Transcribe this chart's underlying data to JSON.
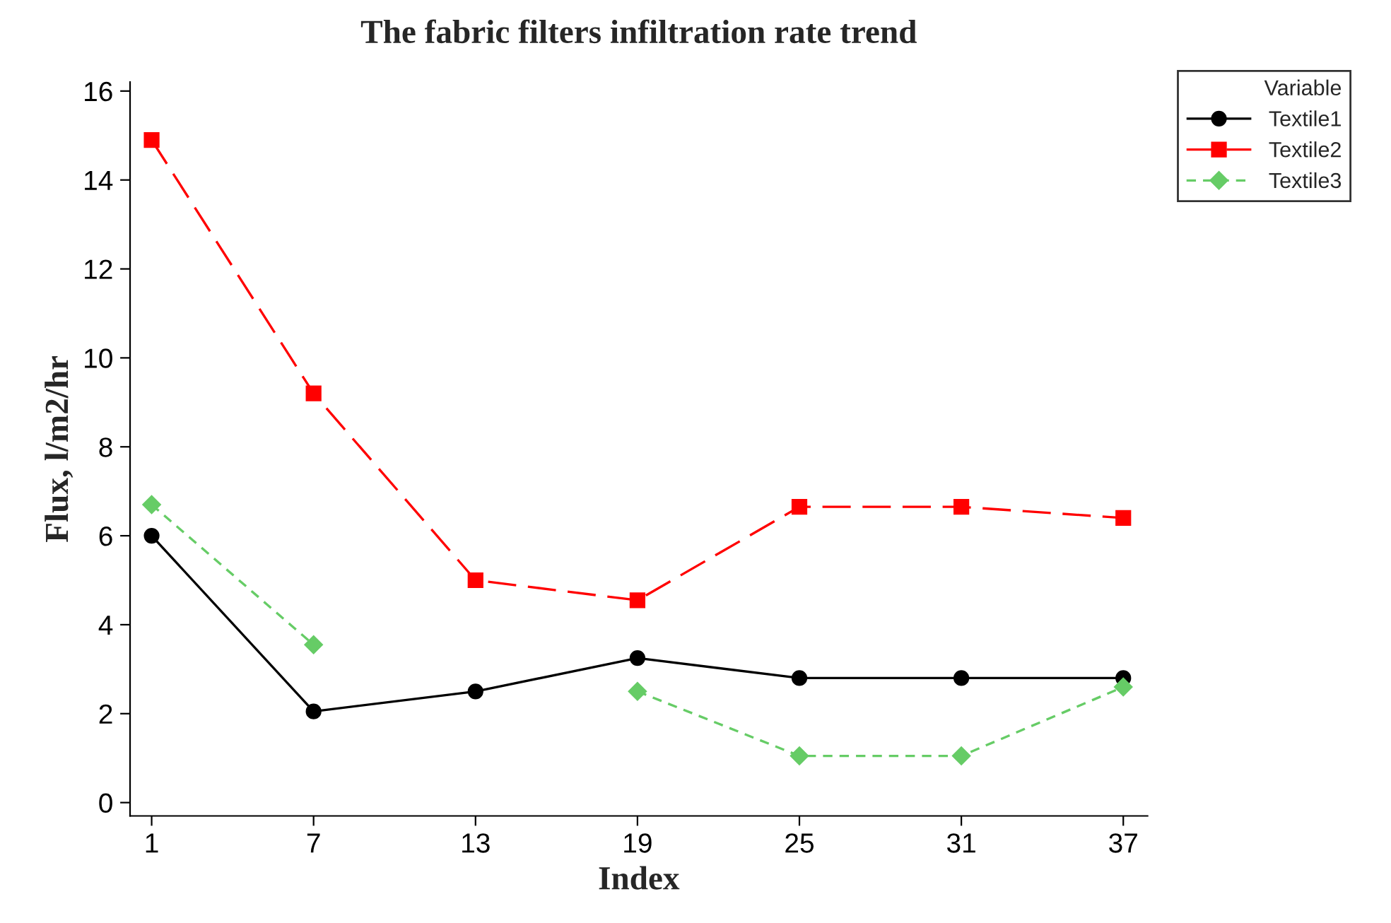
{
  "chart_data": {
    "type": "line",
    "title": "The fabric filters infiltration rate trend",
    "xlabel": "Index",
    "ylabel": "Flux, l/m2/hr",
    "legend_title": "Variable",
    "legend": "top right",
    "x": [
      1,
      7,
      13,
      19,
      25,
      31,
      37
    ],
    "series": [
      {
        "name": "Textile1",
        "color": "#000000",
        "marker": "circle",
        "line_style": "solid",
        "values": [
          6.0,
          2.05,
          2.5,
          3.25,
          2.8,
          2.8,
          2.8
        ]
      },
      {
        "name": "Textile2",
        "color": "#ff0000",
        "marker": "square",
        "line_style": "dashed",
        "values": [
          14.9,
          9.2,
          5.0,
          4.55,
          6.65,
          6.65,
          6.4
        ]
      },
      {
        "name": "Textile3",
        "color": "#66cc66",
        "marker": "diamond",
        "line_style": "dotted",
        "values": [
          6.7,
          3.55,
          null,
          2.5,
          1.05,
          1.05,
          2.6
        ]
      }
    ],
    "xlim": [
      0.2,
      37.9
    ],
    "xticks": [
      1,
      7,
      13,
      19,
      25,
      31,
      37
    ],
    "ylim": [
      -0.3,
      16.2
    ],
    "yticks": [
      0,
      2,
      4,
      6,
      8,
      10,
      12,
      14,
      16
    ],
    "grid": false
  }
}
